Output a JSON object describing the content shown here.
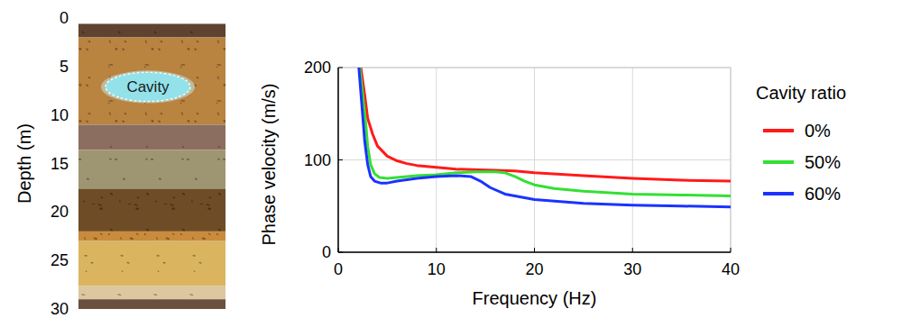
{
  "chart_data": {
    "type": "line",
    "xlabel": "Frequency (Hz)",
    "ylabel": "Phase velocity (m/s)",
    "xlim": [
      0,
      40
    ],
    "ylim": [
      0,
      200
    ],
    "xticks": [
      0,
      10,
      20,
      30,
      40
    ],
    "yticks": [
      0,
      100,
      200
    ],
    "grid": true,
    "legend": "right",
    "legend_title": "Cavity ratio",
    "series": [
      {
        "name": "0%",
        "color": "#ff1a1a",
        "x": [
          2.3,
          2.7,
          3,
          3.5,
          4,
          5,
          6,
          7,
          8,
          10,
          12,
          15,
          18,
          20,
          25,
          30,
          35,
          40
        ],
        "values": [
          200,
          170,
          145,
          128,
          115,
          104,
          99,
          96,
          94,
          92,
          90,
          89,
          88,
          86,
          83,
          80,
          78,
          77
        ]
      },
      {
        "name": "50%",
        "color": "#33e033",
        "x": [
          2.2,
          2.5,
          2.8,
          3,
          3.3,
          3.7,
          4.2,
          5,
          6,
          8,
          10,
          12,
          14,
          16,
          17,
          18,
          19,
          20,
          22,
          25,
          30,
          35,
          40
        ],
        "values": [
          200,
          170,
          140,
          115,
          95,
          85,
          81,
          80,
          81,
          83,
          84,
          86,
          87,
          87,
          86,
          82,
          77,
          73,
          69,
          66,
          63,
          62,
          61
        ]
      },
      {
        "name": "60%",
        "color": "#1a33ff",
        "x": [
          2.1,
          2.4,
          2.7,
          3,
          3.3,
          3.7,
          4.3,
          5,
          6,
          8,
          10,
          12,
          13.5,
          14.5,
          15.5,
          17,
          19,
          20,
          25,
          30,
          35,
          40
        ],
        "values": [
          200,
          160,
          120,
          95,
          82,
          77,
          75,
          75,
          77,
          80,
          82,
          83,
          82,
          77,
          70,
          63,
          59,
          57,
          53,
          51,
          50,
          49
        ]
      }
    ]
  },
  "soil_profile": {
    "ylabel": "Depth (m)",
    "ylim": [
      0,
      30
    ],
    "yticks": [
      0,
      5,
      10,
      15,
      20,
      25,
      30
    ],
    "cavity": {
      "label": "Cavity",
      "top": 5.6,
      "bottom": 8.6
    },
    "layers": [
      {
        "top": 0.6,
        "bottom": 2,
        "color": "#5e4330"
      },
      {
        "top": 2,
        "bottom": 11,
        "color": "#b98340"
      },
      {
        "top": 11,
        "bottom": 13.6,
        "color": "#8c6e60"
      },
      {
        "top": 13.6,
        "bottom": 17.6,
        "color": "#9e9672"
      },
      {
        "top": 17.6,
        "bottom": 22,
        "color": "#6e4c26"
      },
      {
        "top": 22,
        "bottom": 23,
        "color": "#c98b3c"
      },
      {
        "top": 23,
        "bottom": 27.6,
        "color": "#dbb460"
      },
      {
        "top": 27.6,
        "bottom": 29,
        "color": "#dcc79e"
      },
      {
        "top": 29,
        "bottom": 30,
        "color": "#6b5040"
      }
    ]
  }
}
